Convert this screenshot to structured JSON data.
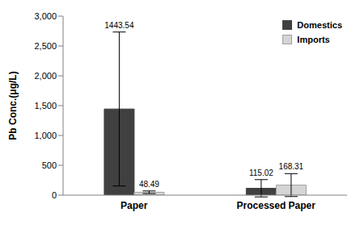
{
  "chart_data": {
    "type": "bar",
    "y_label": "Pb Conc.(μg/L)",
    "categories": [
      "Paper",
      "Processed Paper"
    ],
    "series": [
      {
        "name": "Domestics",
        "color": "#404040",
        "values": [
          1443.54,
          115.02
        ],
        "errors": [
          1290,
          145
        ]
      },
      {
        "name": "Imports",
        "color": "#d4d4d4",
        "values": [
          48.49,
          168.31
        ],
        "errors": [
          22,
          192
        ]
      }
    ],
    "ylim": [
      0,
      3000
    ],
    "yticks": [
      0,
      500,
      {
        "value": 1000,
        "label": "1,000"
      },
      {
        "value": 1500,
        "label": "1,500"
      },
      {
        "value": 2000,
        "label": "2,000"
      },
      {
        "value": 2500,
        "label": "2,500"
      },
      {
        "value": 3000,
        "label": "3,000"
      }
    ],
    "legend": "upper right",
    "data_labels": true,
    "grid": false
  }
}
